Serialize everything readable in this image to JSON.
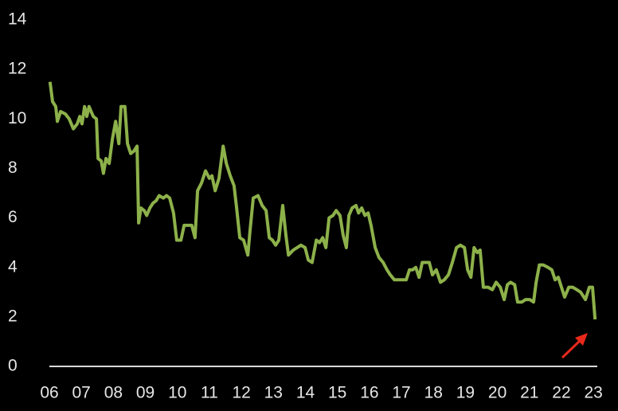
{
  "chart_data": {
    "type": "line",
    "x": [
      6.02,
      6.1,
      6.2,
      6.25,
      6.35,
      6.5,
      6.62,
      6.75,
      6.87,
      6.95,
      7.02,
      7.1,
      7.17,
      7.24,
      7.37,
      7.47,
      7.52,
      7.62,
      7.69,
      7.77,
      7.87,
      7.97,
      8.07,
      8.17,
      8.24,
      8.36,
      8.44,
      8.54,
      8.64,
      8.74,
      8.79,
      8.86,
      8.96,
      9.04,
      9.14,
      9.24,
      9.34,
      9.43,
      9.56,
      9.66,
      9.76,
      9.88,
      9.98,
      10.11,
      10.21,
      10.33,
      10.45,
      10.55,
      10.63,
      10.75,
      10.88,
      11.0,
      11.08,
      11.18,
      11.3,
      11.43,
      11.53,
      11.65,
      11.77,
      11.85,
      11.95,
      12.07,
      12.2,
      12.27,
      12.37,
      12.52,
      12.65,
      12.77,
      12.87,
      12.97,
      13.07,
      13.17,
      13.29,
      13.39,
      13.47,
      13.62,
      13.74,
      13.86,
      13.99,
      14.09,
      14.21,
      14.34,
      14.44,
      14.54,
      14.64,
      14.74,
      14.86,
      14.96,
      15.08,
      15.18,
      15.28,
      15.36,
      15.46,
      15.58,
      15.66,
      15.76,
      15.86,
      15.96,
      16.05,
      16.18,
      16.3,
      16.43,
      16.55,
      16.65,
      16.78,
      16.9,
      17.03,
      17.15,
      17.25,
      17.35,
      17.45,
      17.55,
      17.65,
      17.75,
      17.87,
      17.97,
      18.09,
      18.22,
      18.34,
      18.47,
      18.59,
      18.72,
      18.84,
      18.97,
      19.07,
      19.17,
      19.27,
      19.37,
      19.46,
      19.56,
      19.71,
      19.84,
      19.96,
      20.09,
      20.21,
      20.31,
      20.41,
      20.54,
      20.63,
      20.76,
      20.88,
      21.01,
      21.13,
      21.21,
      21.31,
      21.43,
      21.58,
      21.7,
      21.8,
      21.9,
      22.0,
      22.1,
      22.23,
      22.35,
      22.48,
      22.6,
      22.75,
      22.87,
      22.97,
      23.05
    ],
    "series": [
      {
        "color": "#8db14a",
        "values": [
          11.5,
          10.7,
          10.5,
          9.9,
          10.3,
          10.2,
          10.0,
          9.6,
          9.8,
          10.1,
          9.8,
          10.5,
          10.1,
          10.5,
          10.1,
          10.0,
          8.4,
          8.3,
          7.8,
          8.4,
          8.2,
          9.2,
          9.9,
          9.0,
          10.5,
          10.5,
          9.0,
          8.6,
          8.7,
          8.9,
          5.8,
          6.4,
          6.3,
          6.1,
          6.4,
          6.6,
          6.7,
          6.9,
          6.8,
          6.9,
          6.8,
          6.2,
          5.1,
          5.1,
          5.7,
          5.7,
          5.7,
          5.2,
          7.1,
          7.4,
          7.9,
          7.6,
          7.7,
          7.1,
          7.6,
          8.9,
          8.2,
          7.7,
          7.3,
          6.4,
          5.2,
          5.1,
          4.5,
          5.5,
          6.8,
          6.9,
          6.5,
          6.3,
          5.2,
          5.1,
          4.9,
          5.1,
          6.5,
          5.3,
          4.5,
          4.7,
          4.8,
          4.9,
          4.8,
          4.3,
          4.2,
          5.1,
          5.0,
          5.2,
          4.8,
          6.0,
          6.1,
          6.3,
          6.1,
          5.3,
          4.8,
          6.1,
          6.4,
          6.5,
          6.2,
          6.4,
          6.1,
          6.2,
          5.7,
          4.8,
          4.4,
          4.2,
          3.9,
          3.7,
          3.5,
          3.5,
          3.5,
          3.5,
          3.9,
          3.9,
          4.0,
          3.6,
          4.2,
          4.2,
          4.2,
          3.7,
          3.9,
          3.4,
          3.5,
          3.7,
          4.2,
          4.8,
          4.9,
          4.8,
          3.9,
          3.6,
          4.8,
          4.6,
          4.7,
          3.2,
          3.2,
          3.1,
          3.4,
          3.2,
          2.7,
          3.3,
          3.4,
          3.3,
          2.6,
          2.6,
          2.7,
          2.7,
          2.6,
          3.4,
          4.1,
          4.1,
          4.0,
          3.9,
          3.5,
          3.6,
          3.2,
          2.8,
          3.2,
          3.2,
          3.1,
          3.0,
          2.7,
          3.2,
          3.2,
          1.9
        ]
      }
    ],
    "xlim": [
      6,
      23.12
    ],
    "xticks": [
      {
        "value": 6,
        "label": "06"
      },
      {
        "value": 7,
        "label": "07"
      },
      {
        "value": 8,
        "label": "08"
      },
      {
        "value": 9,
        "label": "09"
      },
      10,
      11,
      12,
      13,
      14,
      15,
      16,
      17,
      18,
      19,
      20,
      21,
      22,
      23
    ],
    "ylim": [
      0,
      14
    ],
    "yticks": [
      0,
      2,
      4,
      6,
      8,
      10,
      12,
      14
    ]
  }
}
